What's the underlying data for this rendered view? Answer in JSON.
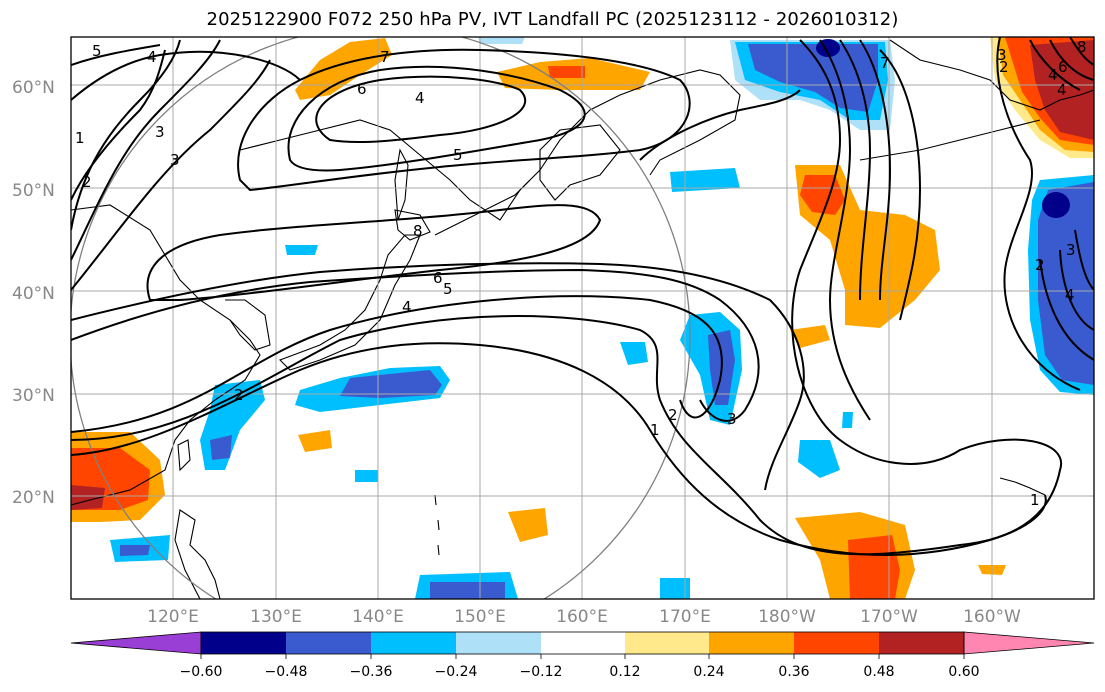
{
  "title": "2025122900 F072 250 hPa PV, IVT Landfall PC (2025123112 - 2026010312)",
  "lat_labels": [
    "60°N",
    "50°N",
    "40°N",
    "30°N",
    "20°N"
  ],
  "lon_labels": [
    "120°E",
    "130°E",
    "140°E",
    "150°E",
    "160°E",
    "170°E",
    "180°W",
    "170°W",
    "160°W"
  ],
  "colorbar": {
    "ticks": [
      "−0.60",
      "−0.48",
      "−0.36",
      "−0.24",
      "−0.12",
      "0.12",
      "0.24",
      "0.36",
      "0.48",
      "0.60"
    ],
    "colors": [
      "#9a3fd6",
      "#00008b",
      "#3a5bcf",
      "#00bfff",
      "#aee0f8",
      "#ffffff",
      "#ffe98a",
      "#ffa500",
      "#ff4500",
      "#b22222",
      "#ff86b0"
    ]
  },
  "contour_labels": [
    "5",
    "4",
    "6",
    "7",
    "4",
    "5",
    "8",
    "6",
    "5",
    "4",
    "2",
    "3",
    "1",
    "2",
    "3",
    "1",
    "2",
    "3",
    "4",
    "7",
    "8",
    "6",
    "1",
    "4",
    "2",
    "3",
    "2",
    "3",
    "4"
  ],
  "fill_colors": {
    "neg_light": "#aee0f8",
    "neg_mid": "#00bfff",
    "neg_dark": "#3a5bcf",
    "neg_darkest": "#00008b",
    "pos_light": "#ffe98a",
    "pos_mid": "#ffa500",
    "pos_dark": "#ff4500",
    "pos_darkest": "#b22222"
  },
  "grid": true,
  "map_domain": "North Pacific, 110°E–150°W, 10°N–65°N"
}
